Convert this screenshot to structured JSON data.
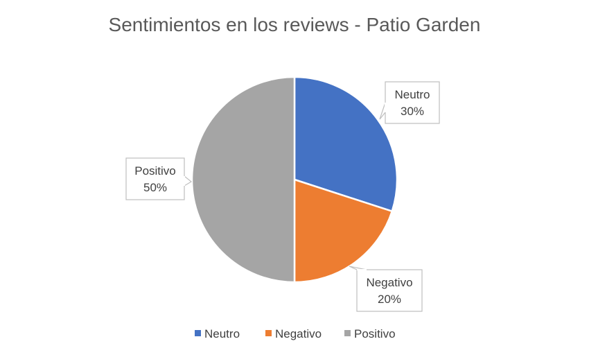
{
  "chart_data": {
    "type": "pie",
    "title": "Sentimientos en los reviews - Patio Garden",
    "categories": [
      "Neutro",
      "Negativo",
      "Positivo"
    ],
    "values": [
      30,
      20,
      50
    ],
    "labels": [
      "30%",
      "20%",
      "50%"
    ],
    "colors": [
      "#4472C4",
      "#ED7D31",
      "#A5A5A5"
    ],
    "legend": "bottom",
    "data_label_style": "callout"
  }
}
